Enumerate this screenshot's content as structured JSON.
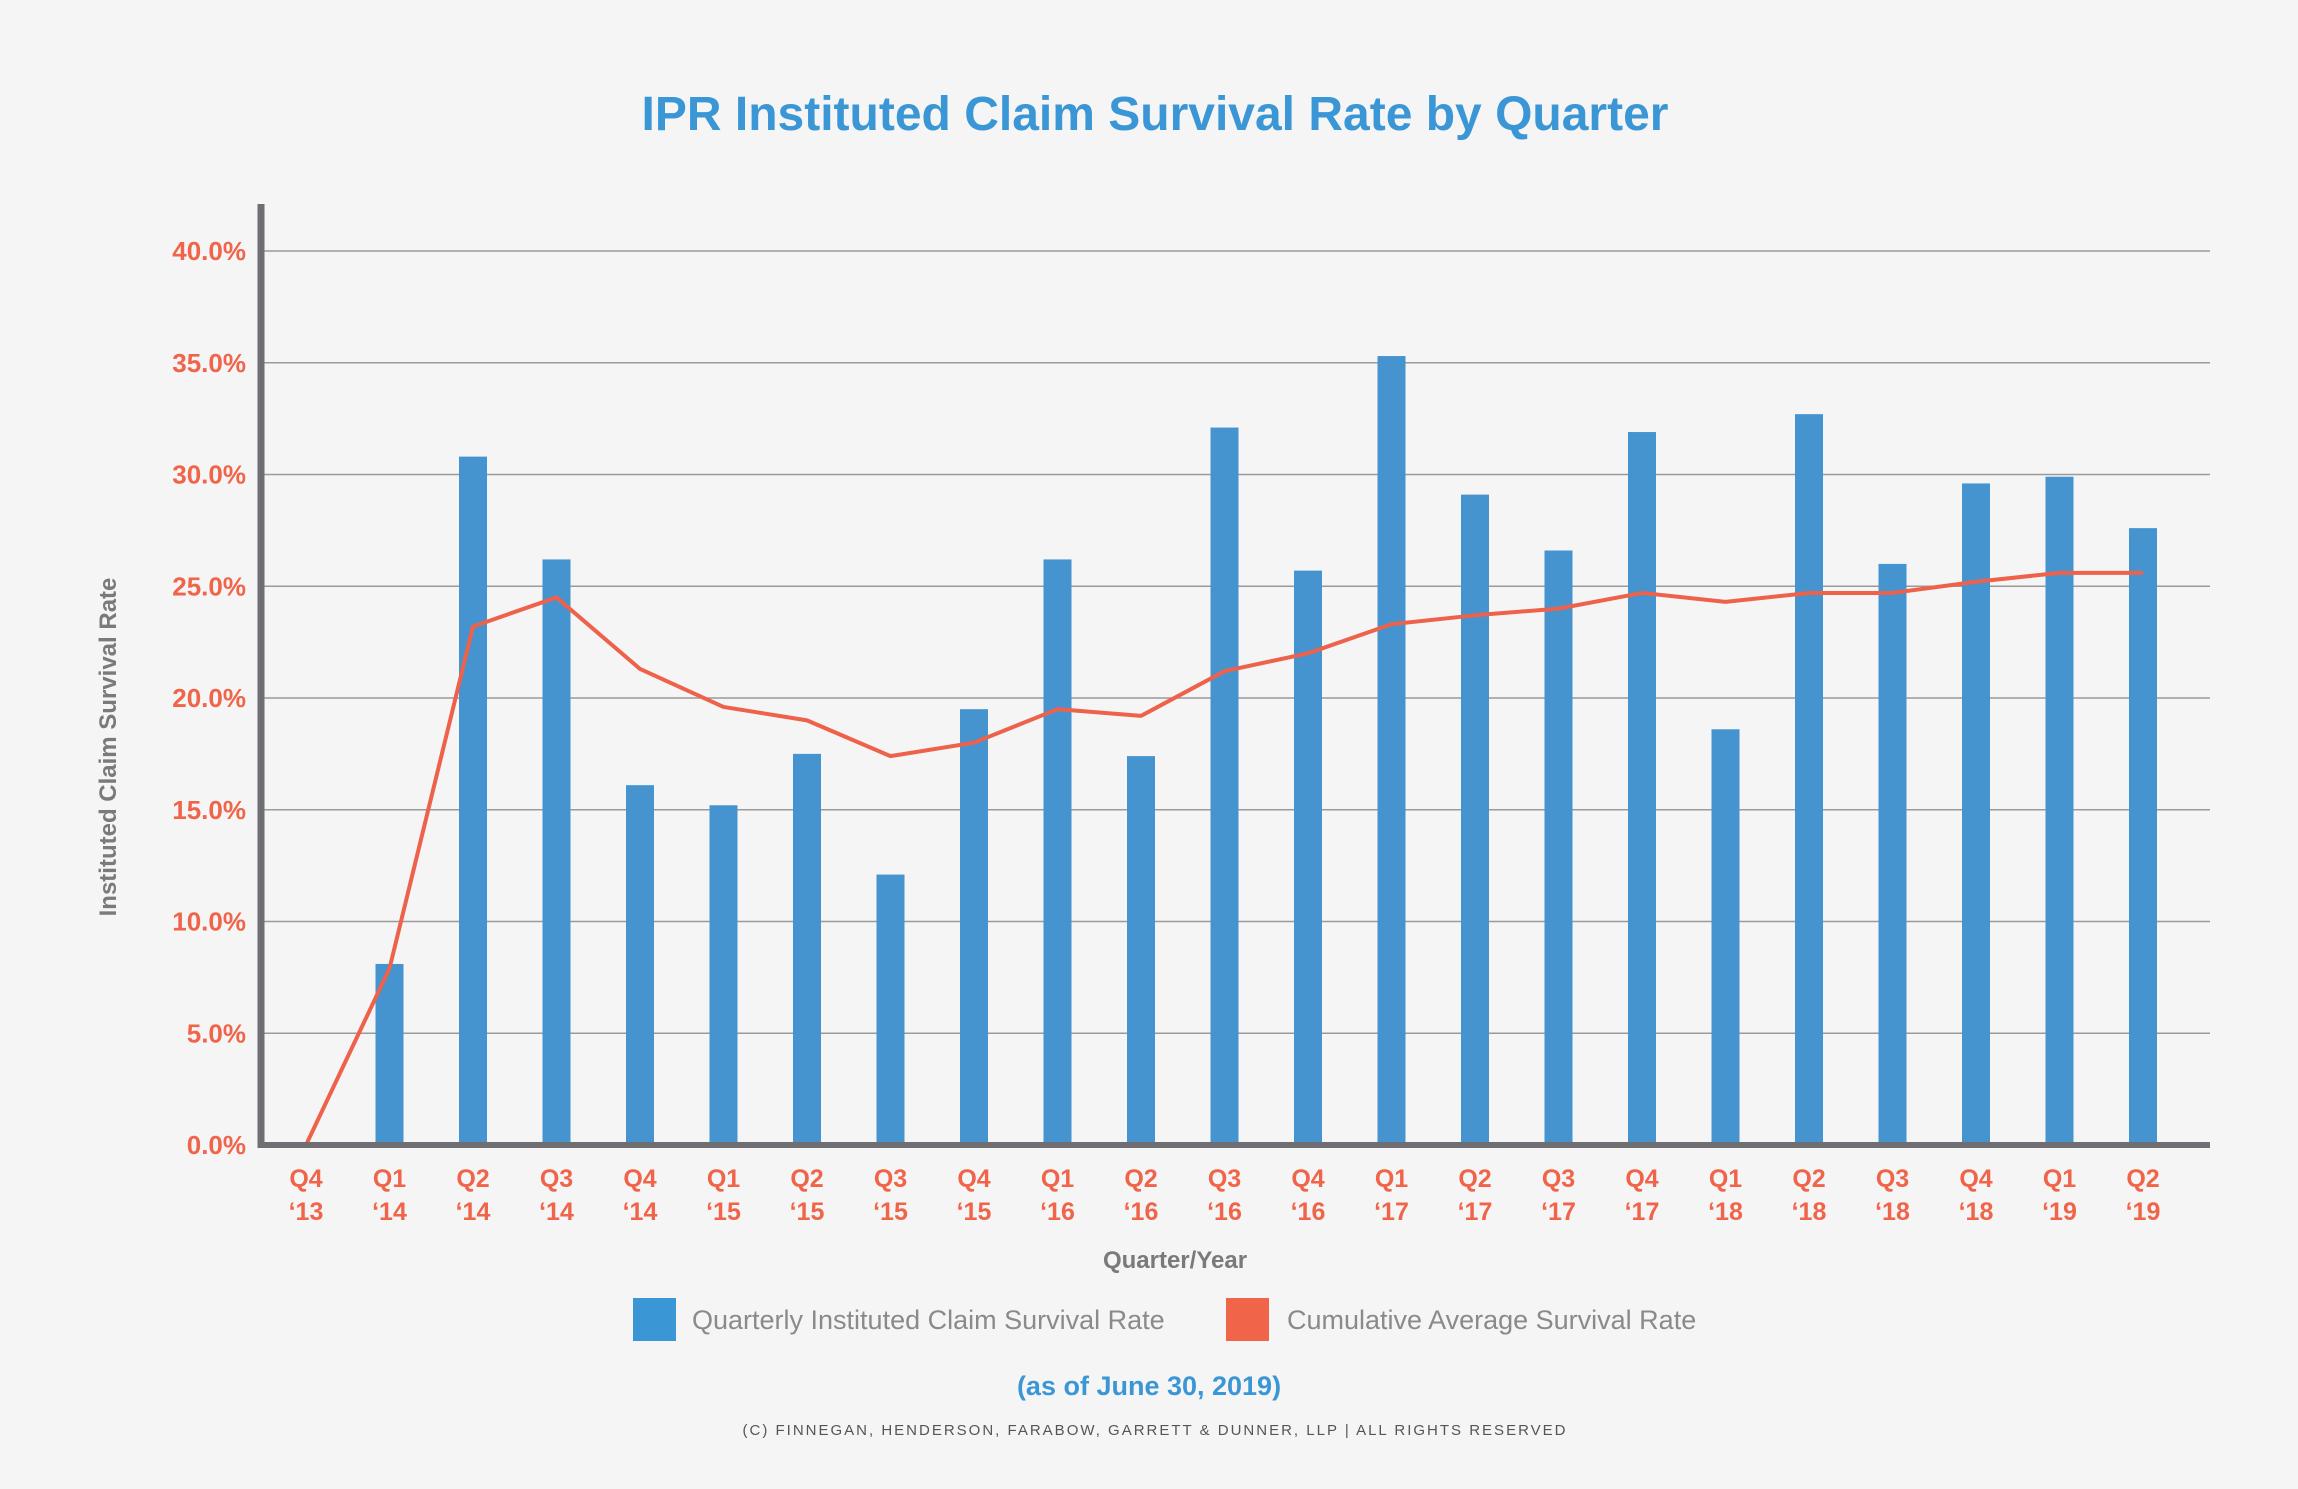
{
  "chart_data": {
    "type": "bar",
    "title": "IPR Instituted Claim Survival Rate by Quarter",
    "xlabel": "Quarter/Year",
    "ylabel": "Instituted Claim Survival Rate",
    "ylim": [
      0,
      40
    ],
    "yticks": [
      "0.0%",
      "5.0%",
      "10.0%",
      "15.0%",
      "20.0%",
      "25.0%",
      "30.0%",
      "35.0%",
      "40.0%"
    ],
    "grid": true,
    "legend_position": "bottom",
    "categories": [
      [
        "Q4",
        "‘13"
      ],
      [
        "Q1",
        "‘14"
      ],
      [
        "Q2",
        "‘14"
      ],
      [
        "Q3",
        "‘14"
      ],
      [
        "Q4",
        "‘14"
      ],
      [
        "Q1",
        "‘15"
      ],
      [
        "Q2",
        "‘15"
      ],
      [
        "Q3",
        "‘15"
      ],
      [
        "Q4",
        "‘15"
      ],
      [
        "Q1",
        "‘16"
      ],
      [
        "Q2",
        "‘16"
      ],
      [
        "Q3",
        "‘16"
      ],
      [
        "Q4",
        "‘16"
      ],
      [
        "Q1",
        "‘17"
      ],
      [
        "Q2",
        "‘17"
      ],
      [
        "Q3",
        "‘17"
      ],
      [
        "Q4",
        "‘17"
      ],
      [
        "Q1",
        "‘18"
      ],
      [
        "Q2",
        "‘18"
      ],
      [
        "Q3",
        "‘18"
      ],
      [
        "Q4",
        "‘18"
      ],
      [
        "Q1",
        "‘19"
      ],
      [
        "Q2",
        "‘19"
      ]
    ],
    "series": [
      {
        "name": "Quarterly Instituted Claim Survival Rate",
        "type": "bar",
        "color": "#4594cf",
        "values": [
          0,
          8.1,
          30.8,
          26.2,
          16.1,
          15.2,
          17.5,
          12.1,
          19.5,
          26.2,
          17.4,
          32.1,
          25.7,
          35.3,
          29.1,
          26.6,
          31.9,
          18.6,
          32.7,
          26.0,
          29.6,
          29.9,
          27.6
        ]
      },
      {
        "name": "Cumulative Average Survival Rate",
        "type": "line",
        "color": "#ee614a",
        "values": [
          0,
          7.9,
          23.2,
          24.5,
          21.3,
          19.6,
          19.0,
          17.4,
          18.0,
          19.5,
          19.2,
          21.2,
          22.0,
          23.3,
          23.7,
          24.0,
          24.7,
          24.3,
          24.7,
          24.7,
          25.2,
          25.6,
          25.6
        ]
      }
    ],
    "note": "(as of June 30, 2019)",
    "copyright": "(C) FINNEGAN, HENDERSON, FARABOW, GARRETT & DUNNER, LLP | ALL RIGHTS RESERVED"
  }
}
